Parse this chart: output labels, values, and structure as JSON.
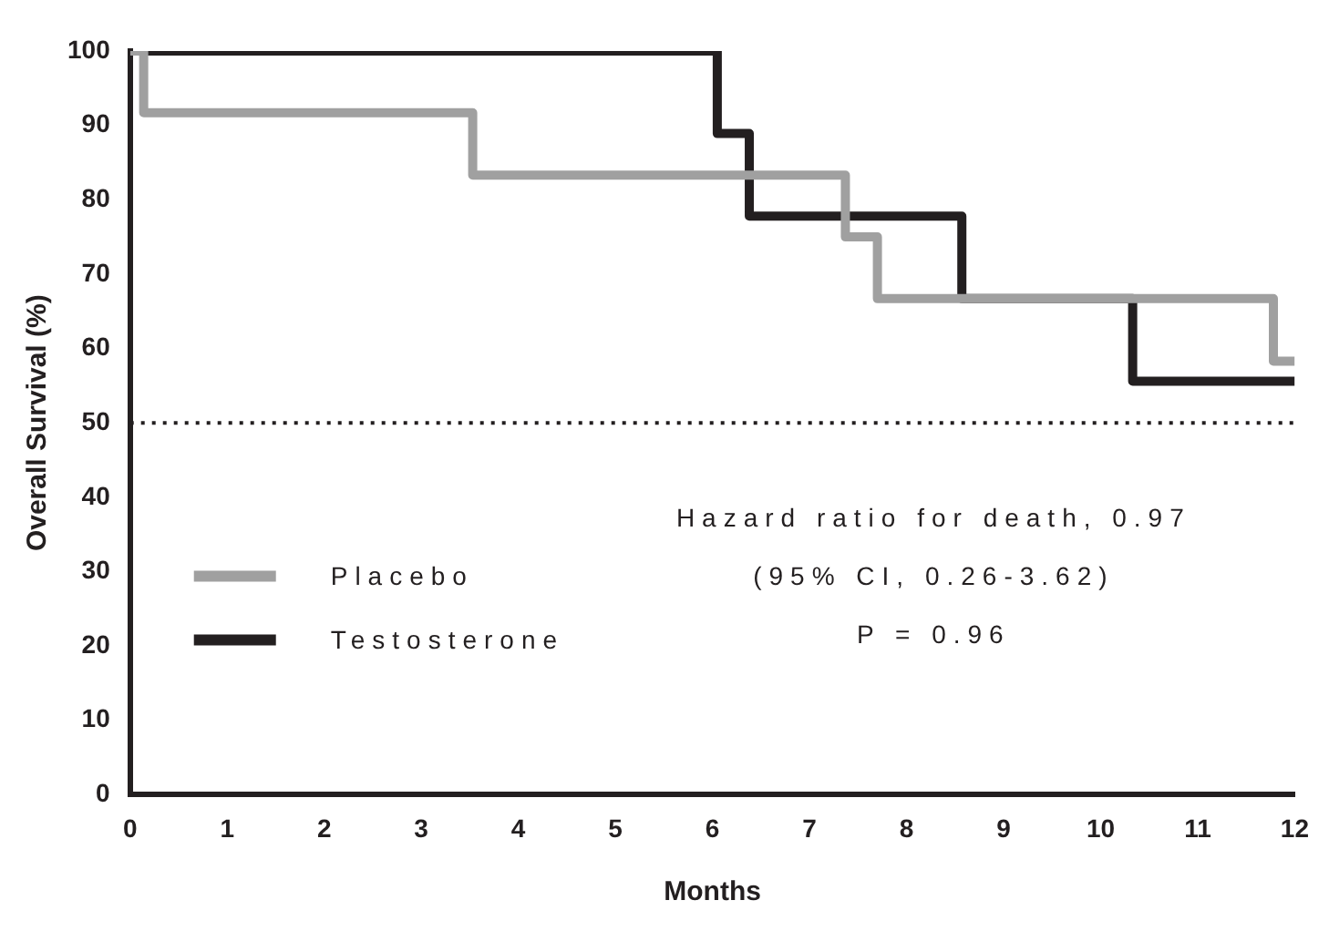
{
  "chart_data": {
    "type": "step",
    "xlabel": "Months",
    "ylabel": "Overall Survival (%)",
    "xlim": [
      0,
      12
    ],
    "xticks": [
      0,
      1,
      2,
      3,
      4,
      5,
      6,
      7,
      8,
      9,
      10,
      11,
      12
    ],
    "ylim": [
      0,
      100
    ],
    "yticks": [
      0,
      10,
      20,
      30,
      40,
      50,
      60,
      70,
      80,
      90,
      100
    ],
    "grid": false,
    "legend": "bottom left",
    "marker": "none",
    "line_style": "solid",
    "ref_lines": [
      {
        "axis": "y",
        "value": 50,
        "line_style": "dotted",
        "color": "#231f20"
      }
    ],
    "annotations": [
      "Hazard ratio for death, 0.97",
      "(95% CI, 0.26-3.62)",
      "P = 0.96"
    ],
    "series": [
      {
        "name": "Placebo",
        "color": "#a0a0a0",
        "x": [
          0,
          0.14,
          3.53,
          7.37,
          7.7,
          11.78,
          12
        ],
        "values": [
          100,
          91.7,
          83.3,
          75,
          66.7,
          58.3,
          58.3
        ]
      },
      {
        "name": "Testosterone",
        "color": "#231f20",
        "x": [
          0,
          6.05,
          6.38,
          8.57,
          10.33,
          12
        ],
        "values": [
          100,
          88.9,
          77.8,
          66.7,
          55.6,
          55.6
        ]
      }
    ]
  }
}
